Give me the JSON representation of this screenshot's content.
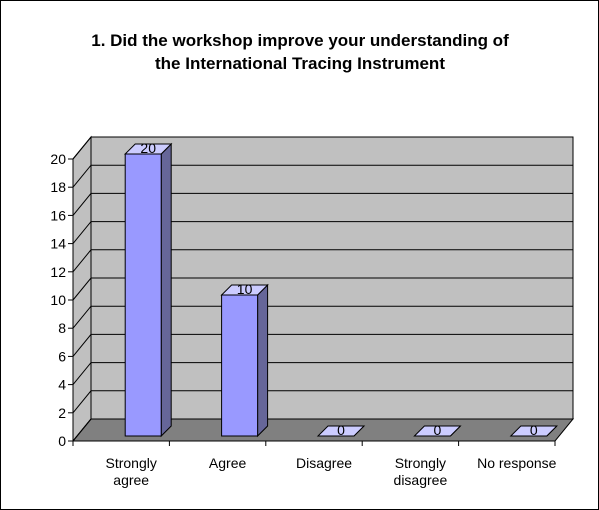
{
  "chart_data": {
    "type": "bar3d",
    "title": "1. Did the workshop improve your understanding of the International Tracing Instrument",
    "categories": [
      "Strongly agree",
      "Agree",
      "Disagree",
      "Strongly disagree",
      "No response"
    ],
    "values": [
      20,
      10,
      0,
      0,
      0
    ],
    "color": "#9999ff",
    "ylim": [
      0,
      20
    ],
    "yticks": [
      0,
      2,
      4,
      6,
      8,
      10,
      12,
      14,
      16,
      18,
      20
    ],
    "grid": true
  }
}
